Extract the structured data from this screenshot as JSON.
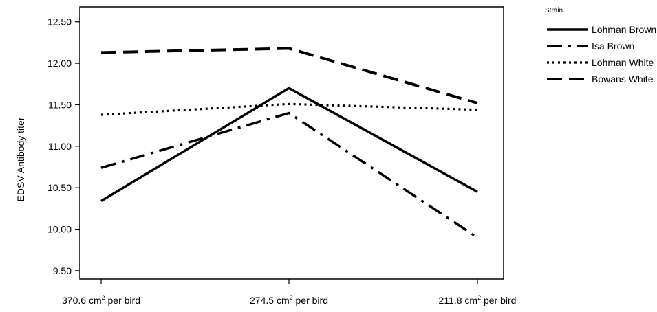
{
  "chart_data": {
    "type": "line",
    "title": "",
    "xlabel": "",
    "ylabel": "EDSV Antibody titer",
    "ylim": [
      9.4,
      12.68
    ],
    "yticks": [
      "9.50",
      "10.00",
      "10.50",
      "11.00",
      "11.50",
      "12.00",
      "12.50"
    ],
    "categories": [
      {
        "value": "370.6 cm",
        "sup": "2",
        "suffix": " per bird"
      },
      {
        "value": "274.5 cm",
        "sup": "2",
        "suffix": " per bird"
      },
      {
        "value": "211.8 cm",
        "sup": "2",
        "suffix": " per bird"
      }
    ],
    "legend": {
      "title": "Strain",
      "position": "top-right"
    },
    "grid": false,
    "series": [
      {
        "name": "Lohman Brown",
        "values": [
          10.34,
          11.7,
          10.45
        ],
        "style": "solid"
      },
      {
        "name": "Isa Brown",
        "values": [
          10.74,
          11.4,
          9.9
        ],
        "style": "dashdot"
      },
      {
        "name": "Lohman White",
        "values": [
          11.38,
          11.51,
          11.44
        ],
        "style": "dotted"
      },
      {
        "name": "Bowans White",
        "values": [
          12.13,
          12.18,
          11.52
        ],
        "style": "dashed"
      }
    ],
    "line_color": "#000000"
  }
}
